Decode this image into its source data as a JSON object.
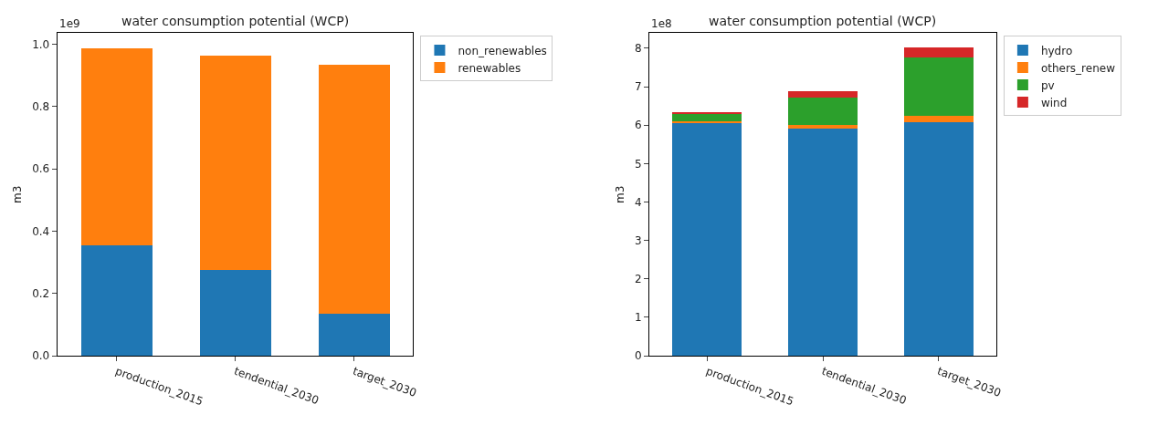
{
  "chart_data": [
    {
      "type": "bar",
      "title": "water consumption potential (WCP)",
      "ylabel": "m3",
      "stacked": true,
      "legend": "top right",
      "categories": [
        "production_2015",
        "tendential_2030",
        "target_2030"
      ],
      "series": [
        {
          "name": "non_renewables",
          "color": "#1f77b4",
          "values": [
            0.355,
            0.276,
            0.134
          ]
        },
        {
          "name": "renewables",
          "color": "#ff7f0e",
          "values": [
            0.632,
            0.686,
            0.8
          ]
        }
      ],
      "ylim": [
        0,
        1.035
      ],
      "yticks": [
        {
          "value": 0,
          "label": "0.0"
        },
        0.2,
        0.4,
        0.6,
        0.8,
        {
          "value": 1,
          "label": "1.0"
        }
      ],
      "annotations": [
        "1e9"
      ]
    },
    {
      "type": "bar",
      "title": "water consumption potential (WCP)",
      "ylabel": "m3",
      "stacked": true,
      "legend": "top right",
      "categories": [
        "production_2015",
        "tendential_2030",
        "target_2030"
      ],
      "series": [
        {
          "name": "hydro",
          "color": "#1f77b4",
          "values": [
            6.04,
            5.92,
            6.08
          ]
        },
        {
          "name": "others_renew",
          "color": "#ff7f0e",
          "values": [
            0.05,
            0.08,
            0.17
          ]
        },
        {
          "name": "pv",
          "color": "#2ca02c",
          "values": [
            0.19,
            0.72,
            1.51
          ]
        },
        {
          "name": "wind",
          "color": "#d62728",
          "values": [
            0.06,
            0.17,
            0.26
          ]
        }
      ],
      "ylim": [
        0,
        8.39
      ],
      "yticks": [
        0,
        1,
        2,
        3,
        4,
        5,
        6,
        7,
        8
      ],
      "annotations": [
        "1e8"
      ]
    }
  ]
}
